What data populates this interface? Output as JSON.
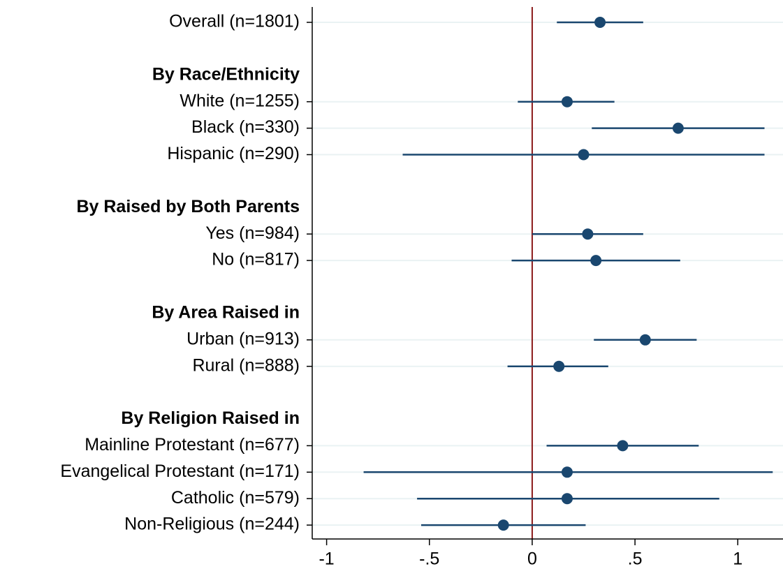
{
  "chart_data": {
    "type": "forest",
    "categories": [
      "Overall (n=1801)",
      null,
      "By Race/Ethnicity",
      "White (n=1255)",
      "Black (n=330)",
      "Hispanic (n=290)",
      null,
      "By Raised by Both Parents",
      "Yes (n=984)",
      "No (n=817)",
      null,
      "By Area Raised in",
      "Urban (n=913)",
      "Rural (n=888)",
      null,
      "By Religion Raised in",
      "Mainline Protestant (n=677)",
      "Evangelical Protestant (n=171)",
      "Catholic (n=579)",
      "Non-Religious (n=244)"
    ],
    "values": [
      0.33,
      null,
      null,
      0.17,
      0.71,
      0.25,
      null,
      null,
      0.27,
      0.31,
      null,
      null,
      0.55,
      0.13,
      null,
      null,
      0.44,
      0.17,
      0.17,
      -0.14
    ],
    "lower": [
      0.12,
      null,
      null,
      -0.07,
      0.29,
      -0.63,
      null,
      null,
      0.0,
      -0.1,
      null,
      null,
      0.3,
      -0.12,
      null,
      null,
      0.07,
      -0.82,
      -0.56,
      -0.54
    ],
    "upper": [
      0.54,
      null,
      null,
      0.4,
      1.13,
      1.13,
      null,
      null,
      0.54,
      0.72,
      null,
      null,
      0.8,
      0.37,
      null,
      null,
      0.81,
      1.17,
      0.91,
      0.26
    ],
    "color": "#1a476f",
    "refline": 0,
    "refline_color": "#8b1a1a",
    "xlim": [
      -1.07,
      1.22
    ],
    "xticks": [
      -1,
      {
        "value": -0.5,
        "label": "-.5"
      },
      0,
      {
        "value": 0.5,
        "label": ".5"
      },
      1
    ],
    "grid": true
  }
}
